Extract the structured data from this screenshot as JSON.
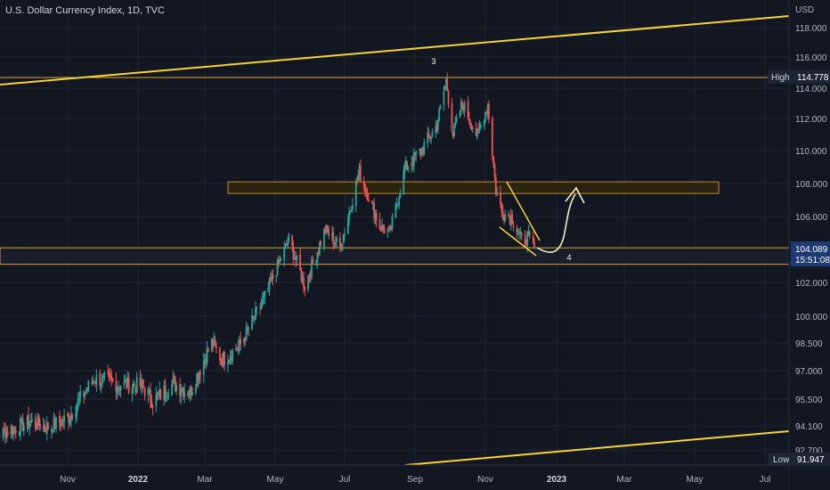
{
  "header": {
    "symbol": "U.S. Dollar Currency Index",
    "sep": ", ",
    "interval": "1D",
    "source": "TVC"
  },
  "chart_data": {
    "type": "candlestick",
    "currency_label": "USD",
    "y_ticks": [
      {
        "value": 92.7,
        "label": "92.700"
      },
      {
        "value": 94.1,
        "label": "94.100"
      },
      {
        "value": 95.5,
        "label": "95.500"
      },
      {
        "value": 97.0,
        "label": "97.000"
      },
      {
        "value": 98.5,
        "label": "98.500"
      },
      {
        "value": 100.0,
        "label": "100.000"
      },
      {
        "value": 102.0,
        "label": "102.000"
      },
      {
        "value": 104.0,
        "label": "104.000"
      },
      {
        "value": 106.0,
        "label": "106.000"
      },
      {
        "value": 108.0,
        "label": "108.000"
      },
      {
        "value": 110.0,
        "label": "110.000"
      },
      {
        "value": 112.0,
        "label": "112.000"
      },
      {
        "value": 114.0,
        "label": "114.000"
      },
      {
        "value": 116.0,
        "label": "116.000"
      },
      {
        "value": 118.0,
        "label": "118.000"
      }
    ],
    "x_ticks": [
      {
        "date": "2021-11-01",
        "label": "Nov"
      },
      {
        "date": "2022-01-01",
        "label": "2022"
      },
      {
        "date": "2022-03-01",
        "label": "Mar"
      },
      {
        "date": "2022-05-01",
        "label": "May"
      },
      {
        "date": "2022-07-01",
        "label": "Jul"
      },
      {
        "date": "2022-09-01",
        "label": "Sep"
      },
      {
        "date": "2022-11-01",
        "label": "Nov"
      },
      {
        "date": "2023-01-01",
        "label": "2023"
      },
      {
        "date": "2023-03-01",
        "label": "Mar"
      },
      {
        "date": "2023-05-01",
        "label": "May"
      },
      {
        "date": "2023-07-01",
        "label": "Jul"
      }
    ],
    "price_path": [
      {
        "date": "2021-08-20",
        "close": 93.3
      },
      {
        "date": "2021-09-10",
        "close": 93.8
      },
      {
        "date": "2021-09-30",
        "close": 94.3
      },
      {
        "date": "2021-10-15",
        "close": 94.0
      },
      {
        "date": "2021-11-01",
        "close": 94.5
      },
      {
        "date": "2021-11-24",
        "close": 96.6
      },
      {
        "date": "2021-12-15",
        "close": 96.3
      },
      {
        "date": "2022-01-05",
        "close": 96.2
      },
      {
        "date": "2022-01-14",
        "close": 95.4
      },
      {
        "date": "2022-02-01",
        "close": 96.3
      },
      {
        "date": "2022-02-16",
        "close": 95.9
      },
      {
        "date": "2022-03-07",
        "close": 98.5
      },
      {
        "date": "2022-03-16",
        "close": 97.6
      },
      {
        "date": "2022-03-31",
        "close": 98.3
      },
      {
        "date": "2022-04-20",
        "close": 100.8
      },
      {
        "date": "2022-05-13",
        "close": 104.6
      },
      {
        "date": "2022-05-27",
        "close": 101.8
      },
      {
        "date": "2022-06-14",
        "close": 105.2
      },
      {
        "date": "2022-06-27",
        "close": 104.1
      },
      {
        "date": "2022-07-14",
        "close": 108.7
      },
      {
        "date": "2022-08-01",
        "close": 105.4
      },
      {
        "date": "2022-08-10",
        "close": 105.0
      },
      {
        "date": "2022-08-23",
        "close": 108.9
      },
      {
        "date": "2022-09-07",
        "close": 110.1
      },
      {
        "date": "2022-09-20",
        "close": 111.6
      },
      {
        "date": "2022-09-28",
        "close": 114.5
      },
      {
        "date": "2022-10-04",
        "close": 111.0
      },
      {
        "date": "2022-10-12",
        "close": 113.0
      },
      {
        "date": "2022-10-25",
        "close": 110.9
      },
      {
        "date": "2022-11-03",
        "close": 112.9
      },
      {
        "date": "2022-11-10",
        "close": 107.6
      },
      {
        "date": "2022-11-15",
        "close": 106.3
      },
      {
        "date": "2022-11-24",
        "close": 105.9
      },
      {
        "date": "2022-12-02",
        "close": 104.5
      },
      {
        "date": "2022-12-07",
        "close": 104.8
      },
      {
        "date": "2022-12-13",
        "close": 104.1
      }
    ],
    "levels": {
      "high": {
        "label": "High",
        "value": "114.778"
      },
      "low": {
        "label": "Low",
        "value": "91.947"
      },
      "last": {
        "value": "104.089",
        "countdown": "15:51:08"
      }
    },
    "annotations": [
      {
        "text": "3"
      },
      {
        "text": "4"
      }
    ],
    "colors": {
      "background": "#131722",
      "up": "#26a69a",
      "down": "#ef5350",
      "drawing": "#f5d33a",
      "zone_fill": "#2a2410",
      "price_label_bg": "#1e3a73"
    }
  }
}
